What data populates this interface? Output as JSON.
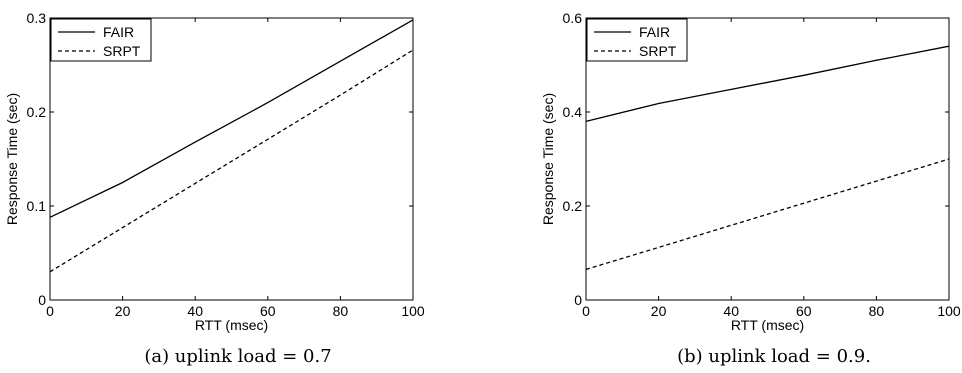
{
  "chart_data": [
    {
      "type": "line",
      "caption": "(a) uplink load = 0.7",
      "xlabel": "RTT (msec)",
      "ylabel": "Response Time (sec)",
      "xlim": [
        0,
        100
      ],
      "ylim": [
        0,
        0.3
      ],
      "xticks": [
        0,
        20,
        40,
        60,
        80,
        100
      ],
      "yticks": [
        0,
        0.1,
        0.2,
        0.3
      ],
      "ytick_labels": [
        "0",
        "0.1",
        "0.2",
        "0.3"
      ],
      "legend_position": "top-left",
      "x": [
        0,
        20,
        40,
        60,
        80,
        100
      ],
      "series": [
        {
          "name": "FAIR",
          "style": "solid",
          "values": [
            0.088,
            0.125,
            0.168,
            0.21,
            0.254,
            0.298
          ]
        },
        {
          "name": "SRPT",
          "style": "dashed",
          "values": [
            0.03,
            0.077,
            0.124,
            0.171,
            0.218,
            0.266
          ]
        }
      ]
    },
    {
      "type": "line",
      "caption": "(b) uplink load = 0.9.",
      "xlabel": "RTT (msec)",
      "ylabel": "Response Time (sec)",
      "xlim": [
        0,
        100
      ],
      "ylim": [
        0,
        0.6
      ],
      "xticks": [
        0,
        20,
        40,
        60,
        80,
        100
      ],
      "yticks": [
        0,
        0.2,
        0.4,
        0.6
      ],
      "ytick_labels": [
        "0",
        "0.2",
        "0.4",
        "0.6"
      ],
      "legend_position": "top-left",
      "x": [
        0,
        20,
        40,
        60,
        80,
        100
      ],
      "series": [
        {
          "name": "FAIR",
          "style": "solid",
          "values": [
            0.38,
            0.418,
            0.448,
            0.478,
            0.51,
            0.54
          ]
        },
        {
          "name": "SRPT",
          "style": "dashed",
          "values": [
            0.065,
            0.112,
            0.159,
            0.206,
            0.253,
            0.3
          ]
        }
      ]
    }
  ]
}
